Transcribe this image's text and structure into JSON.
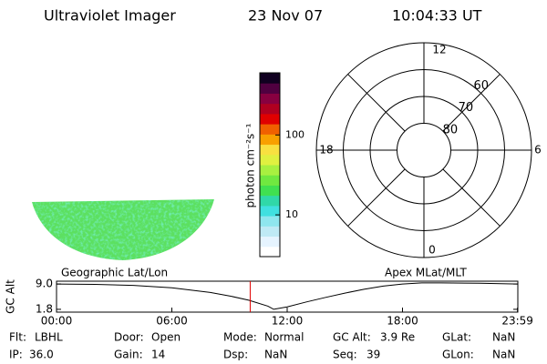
{
  "header": {
    "title": "Ultraviolet Imager",
    "date": "23 Nov 07",
    "time": "10:04:33 UT"
  },
  "colorbar": {
    "label": "photon cm⁻²s⁻¹",
    "scale": "log",
    "ylim": [
      3,
      600
    ],
    "yticks": [
      10,
      100
    ]
  },
  "polar": {
    "rlim": [
      90,
      50
    ],
    "rticks": [
      80,
      70,
      60
    ],
    "mlt_ticks": [
      12,
      18,
      6,
      0
    ]
  },
  "altitude": {
    "ylabel": "GC Alt",
    "left_label": "Geographic Lat/Lon",
    "right_label": "Apex MLat/MLT",
    "xlim": [
      0,
      24
    ],
    "xticks": [
      {
        "value": 0,
        "label": "00:00"
      },
      {
        "value": 6,
        "label": "06:00"
      },
      {
        "value": 12,
        "label": "12:00"
      },
      {
        "value": 18,
        "label": "18:00"
      },
      {
        "value": 23.983,
        "label": "23:59"
      }
    ],
    "ylim": [
      1.0,
      9.8
    ],
    "yticks": [
      {
        "value": 9,
        "label": "9.0"
      },
      {
        "value": 1.8,
        "label": "1.8"
      }
    ],
    "x": [
      0,
      2,
      4,
      6,
      8,
      9,
      10,
      11,
      11.3,
      12,
      13,
      14,
      15,
      16,
      17,
      18,
      19,
      20,
      22,
      24
    ],
    "values": [
      9.0,
      8.9,
      8.6,
      7.9,
      6.6,
      5.6,
      4.4,
      2.7,
      1.8,
      2.5,
      3.9,
      5.2,
      6.4,
      7.5,
      8.4,
      9.0,
      9.3,
      9.3,
      9.2,
      9.0
    ],
    "marker": 10.076,
    "color": "#000",
    "marker_color": "#e00000"
  },
  "footer": {
    "rows": [
      [
        [
          "Flt:",
          "LBHL"
        ],
        [
          "Door:",
          "Open"
        ],
        [
          "Mode:",
          "Normal"
        ],
        [
          "GC Alt:",
          "3.9 Re"
        ],
        [
          "GLat:",
          "NaN"
        ]
      ],
      [
        [
          "IP:",
          "36.0"
        ],
        [
          "Gain:",
          "14"
        ],
        [
          "Dsp:",
          "NaN"
        ],
        [
          "Seq:",
          "39"
        ],
        [
          "GLon:",
          "NaN"
        ]
      ]
    ]
  }
}
